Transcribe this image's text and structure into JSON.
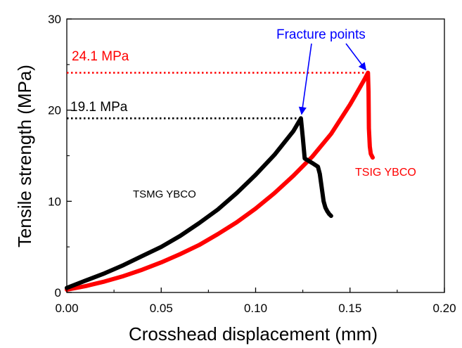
{
  "chart_data": {
    "type": "line",
    "title": "",
    "xlabel": "Crosshead displacement (mm)",
    "ylabel": "Tensile strength (MPa)",
    "xlim": [
      0.0,
      0.2
    ],
    "ylim": [
      0,
      30
    ],
    "x_ticks": [
      "0.00",
      "0.05",
      "0.10",
      "0.15",
      "0.20"
    ],
    "y_ticks": [
      "0",
      "10",
      "20",
      "30"
    ],
    "grid": false,
    "legend": "none",
    "series": [
      {
        "name": "TSMG YBCO",
        "color": "#000000",
        "x": [
          0.0,
          0.01,
          0.02,
          0.03,
          0.04,
          0.05,
          0.06,
          0.07,
          0.08,
          0.09,
          0.1,
          0.11,
          0.12,
          0.124,
          0.125,
          0.126,
          0.13,
          0.133,
          0.134,
          0.135,
          0.136,
          0.137,
          0.138,
          0.139,
          0.14
        ],
        "y": [
          0.5,
          1.3,
          2.1,
          3.0,
          4.0,
          5.0,
          6.2,
          7.6,
          9.1,
          10.9,
          12.9,
          15.1,
          17.7,
          19.1,
          17.0,
          14.7,
          14.2,
          13.8,
          13.0,
          11.5,
          10.0,
          9.3,
          8.9,
          8.6,
          8.4
        ]
      },
      {
        "name": "TSIG YBCO",
        "color": "#ff0000",
        "x": [
          0.0,
          0.01,
          0.02,
          0.03,
          0.04,
          0.05,
          0.06,
          0.07,
          0.08,
          0.09,
          0.1,
          0.11,
          0.12,
          0.13,
          0.14,
          0.15,
          0.155,
          0.158,
          0.1595,
          0.1598,
          0.16,
          0.1605,
          0.161,
          0.162
        ],
        "y": [
          0.3,
          0.7,
          1.2,
          1.8,
          2.5,
          3.3,
          4.2,
          5.2,
          6.4,
          7.7,
          9.2,
          10.9,
          12.8,
          14.9,
          17.4,
          20.6,
          22.4,
          23.5,
          24.1,
          22.0,
          18.0,
          16.0,
          15.2,
          14.8
        ]
      }
    ],
    "reference_lines": [
      {
        "label": "24.1 MPa",
        "value": 24.1,
        "x_end": 0.1595,
        "color": "#ff0000"
      },
      {
        "label": "19.1 MPa",
        "value": 19.1,
        "x_end": 0.124,
        "color": "#000000"
      }
    ],
    "annotations": {
      "fracture_label": "Fracture points",
      "fracture_color": "#0000ff",
      "fracture_targets": [
        [
          0.124,
          19.1
        ],
        [
          0.1595,
          24.1
        ]
      ],
      "tsmg_label": "TSMG YBCO",
      "tsig_label": "TSIG YBCO"
    }
  }
}
